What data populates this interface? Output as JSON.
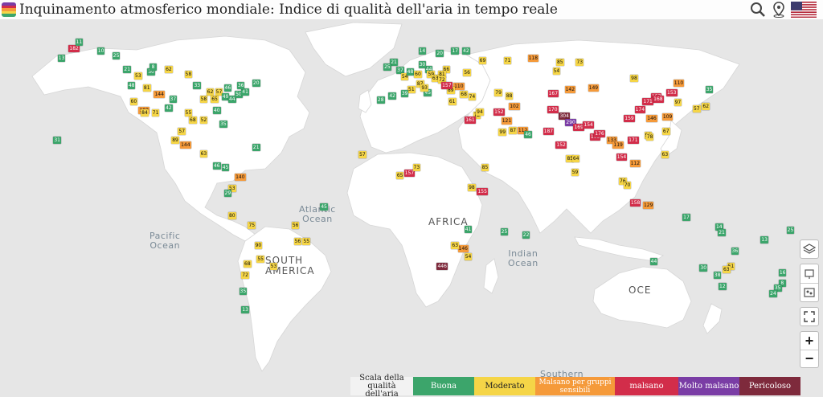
{
  "header": {
    "title": "Inquinamento atmosferico mondiale: Indice di qualità dell'aria in tempo reale",
    "icons": [
      "search-icon",
      "location-pin-icon",
      "us-flag-icon"
    ]
  },
  "colors": {
    "good": "#3ca56b",
    "moderate": "#f5d547",
    "usg": "#f59a3a",
    "unhealthy": "#d22d4a",
    "very_unhealthy": "#7a3da5",
    "hazardous": "#7e2a3c"
  },
  "map_labels": {
    "atlantic": "Atlantic\nOcean",
    "pacific": "Pacific\nOcean",
    "indian": "Indian\nOcean",
    "southern": "Southern",
    "africa": "AFRICA",
    "south_america": "SOUTH\nAMERICA",
    "oceania": "OCE"
  },
  "legend": {
    "title_line1": "Scala della",
    "title_line2": "qualità dell'aria",
    "items": [
      {
        "label": "Buona",
        "color": "#3ca56b",
        "text": "#fff"
      },
      {
        "label": "Moderato",
        "color": "#f5d547",
        "text": "#222"
      },
      {
        "label": "Malsano per gruppi sensibili",
        "color": "#f59a3a",
        "text": "#fff"
      },
      {
        "label": "malsano",
        "color": "#d22d4a",
        "text": "#fff"
      },
      {
        "label": "Molto malsano",
        "color": "#7a3da5",
        "text": "#fff"
      },
      {
        "label": "Pericoloso",
        "color": "#7e2a3c",
        "text": "#fff"
      }
    ]
  },
  "controls": {
    "zoom_in": "+",
    "zoom_out": "−"
  },
  "stations": [
    {
      "lon": -130,
      "lat": 58,
      "v": 25
    },
    {
      "lon": -150,
      "lat": 61,
      "v": 182
    },
    {
      "lon": -147,
      "lat": 64,
      "v": 11
    },
    {
      "lon": -155,
      "lat": 57,
      "v": 13
    },
    {
      "lon": -137,
      "lat": 60,
      "v": 10
    },
    {
      "lon": -125,
      "lat": 52,
      "v": 21
    },
    {
      "lon": -120,
      "lat": 49,
      "v": 53
    },
    {
      "lon": -114,
      "lat": 51,
      "v": 30
    },
    {
      "lon": -113,
      "lat": 53,
      "v": 8
    },
    {
      "lon": -106,
      "lat": 52,
      "v": 62
    },
    {
      "lon": -97,
      "lat": 50,
      "v": 58
    },
    {
      "lon": -123,
      "lat": 45,
      "v": 48
    },
    {
      "lon": -122,
      "lat": 38,
      "v": 60
    },
    {
      "lon": -118,
      "lat": 34,
      "v": 103
    },
    {
      "lon": -117,
      "lat": 33,
      "v": 84
    },
    {
      "lon": -112,
      "lat": 33,
      "v": 71
    },
    {
      "lon": -106,
      "lat": 35,
      "v": 42
    },
    {
      "lon": -104,
      "lat": 39,
      "v": 37
    },
    {
      "lon": -111,
      "lat": 41,
      "v": 144
    },
    {
      "lon": -116,
      "lat": 44,
      "v": 81
    },
    {
      "lon": -97,
      "lat": 33,
      "v": 55
    },
    {
      "lon": -95,
      "lat": 30,
      "v": 68
    },
    {
      "lon": -90,
      "lat": 30,
      "v": 52
    },
    {
      "lon": -84,
      "lat": 34,
      "v": 40
    },
    {
      "lon": -81,
      "lat": 28,
      "v": 35
    },
    {
      "lon": -87,
      "lat": 42,
      "v": 62
    },
    {
      "lon": -83,
      "lat": 42,
      "v": 57
    },
    {
      "lon": -80,
      "lat": 40,
      "v": 49
    },
    {
      "lon": -77,
      "lat": 39,
      "v": 44
    },
    {
      "lon": -74,
      "lat": 41,
      "v": 50
    },
    {
      "lon": -71,
      "lat": 42,
      "v": 41
    },
    {
      "lon": -73,
      "lat": 45,
      "v": 36
    },
    {
      "lon": -79,
      "lat": 44,
      "v": 46
    },
    {
      "lon": -66,
      "lat": 46,
      "v": 20
    },
    {
      "lon": -93,
      "lat": 45,
      "v": 33
    },
    {
      "lon": -90,
      "lat": 39,
      "v": 58
    },
    {
      "lon": -85,
      "lat": 39,
      "v": 65
    },
    {
      "lon": -99,
      "lat": 19,
      "v": 144
    },
    {
      "lon": -103,
      "lat": 21,
      "v": 89
    },
    {
      "lon": -100,
      "lat": 25,
      "v": 57
    },
    {
      "lon": -90,
      "lat": 15,
      "v": 63
    },
    {
      "lon": -84,
      "lat": 10,
      "v": 46
    },
    {
      "lon": -80,
      "lat": 9,
      "v": 45
    },
    {
      "lon": -66,
      "lat": 18,
      "v": 21
    },
    {
      "lon": -157,
      "lat": 21,
      "v": 31
    },
    {
      "lon": -74,
      "lat": 5,
      "v": 140
    },
    {
      "lon": -77,
      "lat": 0,
      "v": 53
    },
    {
      "lon": -79,
      "lat": -2,
      "v": 29
    },
    {
      "lon": -77,
      "lat": -12,
      "v": 80
    },
    {
      "lon": -68,
      "lat": -16,
      "v": 75
    },
    {
      "lon": -47,
      "lat": -23,
      "v": 56
    },
    {
      "lon": -43,
      "lat": -23,
      "v": 55
    },
    {
      "lon": -48,
      "lat": -16,
      "v": 56
    },
    {
      "lon": -35,
      "lat": -8,
      "v": 45
    },
    {
      "lon": -70,
      "lat": -33,
      "v": 68
    },
    {
      "lon": -71,
      "lat": -38,
      "v": 72
    },
    {
      "lon": -65,
      "lat": -25,
      "v": 90
    },
    {
      "lon": -58,
      "lat": -34,
      "v": 53
    },
    {
      "lon": -64,
      "lat": -31,
      "v": 55
    },
    {
      "lon": -72,
      "lat": -45,
      "v": 35
    },
    {
      "lon": -71,
      "lat": -53,
      "v": 13
    },
    {
      "lon": -0.1,
      "lat": 51.5,
      "v": 37
    },
    {
      "lon": -3,
      "lat": 55,
      "v": 21
    },
    {
      "lon": -6,
      "lat": 53,
      "v": 25
    },
    {
      "lon": 2,
      "lat": 48.8,
      "v": 54
    },
    {
      "lon": 4.5,
      "lat": 51,
      "v": 48
    },
    {
      "lon": 8,
      "lat": 50,
      "v": 60
    },
    {
      "lon": 13,
      "lat": 52,
      "v": 44
    },
    {
      "lon": 10,
      "lat": 54,
      "v": 30
    },
    {
      "lon": 18,
      "lat": 59,
      "v": 20
    },
    {
      "lon": 10,
      "lat": 60,
      "v": 14
    },
    {
      "lon": 25,
      "lat": 60,
      "v": 17
    },
    {
      "lon": 21,
      "lat": 52,
      "v": 66
    },
    {
      "lon": 19,
      "lat": 50,
      "v": 81
    },
    {
      "lon": 14,
      "lat": 50,
      "v": 59
    },
    {
      "lon": 16,
      "lat": 48,
      "v": 63
    },
    {
      "lon": 19,
      "lat": 47.5,
      "v": 72
    },
    {
      "lon": 26,
      "lat": 44.4,
      "v": 110
    },
    {
      "lon": 23,
      "lat": 42.7,
      "v": 89
    },
    {
      "lon": 20.5,
      "lat": 44.8,
      "v": 157
    },
    {
      "lon": 12.5,
      "lat": 41.9,
      "v": 45
    },
    {
      "lon": 9,
      "lat": 45.5,
      "v": 87
    },
    {
      "lon": 11,
      "lat": 44,
      "v": 93
    },
    {
      "lon": 5,
      "lat": 43.3,
      "v": 51
    },
    {
      "lon": -3.7,
      "lat": 40.4,
      "v": 42
    },
    {
      "lon": -9,
      "lat": 38.7,
      "v": 28
    },
    {
      "lon": 2,
      "lat": 41.4,
      "v": 39
    },
    {
      "lon": 23.7,
      "lat": 38,
      "v": 61
    },
    {
      "lon": 29,
      "lat": 41,
      "v": 68
    },
    {
      "lon": 32.8,
      "lat": 39.9,
      "v": 74
    },
    {
      "lon": 30.5,
      "lat": 50.4,
      "v": 56
    },
    {
      "lon": 37.6,
      "lat": 55.7,
      "v": 69
    },
    {
      "lon": 30,
      "lat": 60,
      "v": 42
    },
    {
      "lon": 49,
      "lat": 55.8,
      "v": 71
    },
    {
      "lon": 60,
      "lat": 56.8,
      "v": 118
    },
    {
      "lon": 82,
      "lat": 55,
      "v": 73
    },
    {
      "lon": 73,
      "lat": 55,
      "v": 85
    },
    {
      "lon": 44.8,
      "lat": 41.7,
      "v": 79
    },
    {
      "lon": 49.8,
      "lat": 40.4,
      "v": 88
    },
    {
      "lon": 35,
      "lat": 32,
      "v": 72
    },
    {
      "lon": 36.3,
      "lat": 33.5,
      "v": 94
    },
    {
      "lon": 31.2,
      "lat": 30,
      "v": 161
    },
    {
      "lon": 44.4,
      "lat": 33.3,
      "v": 152
    },
    {
      "lon": 51.4,
      "lat": 35.7,
      "v": 102
    },
    {
      "lon": 46.7,
      "lat": 24.7,
      "v": 99
    },
    {
      "lon": 55.3,
      "lat": 25.2,
      "v": 112
    },
    {
      "lon": 51.5,
      "lat": 25.3,
      "v": 87
    },
    {
      "lon": 58.4,
      "lat": 23.6,
      "v": 46
    },
    {
      "lon": 47.9,
      "lat": 29.4,
      "v": 121
    },
    {
      "lon": 69,
      "lat": 34.5,
      "v": 170
    },
    {
      "lon": 67,
      "lat": 24.9,
      "v": 187
    },
    {
      "lon": 74.3,
      "lat": 31.5,
      "v": 304
    },
    {
      "lon": 77.2,
      "lat": 28.6,
      "v": 290
    },
    {
      "lon": 80.9,
      "lat": 26.8,
      "v": 169
    },
    {
      "lon": 72.8,
      "lat": 19,
      "v": 152
    },
    {
      "lon": 77.6,
      "lat": 13,
      "v": 85
    },
    {
      "lon": 80.3,
      "lat": 13.1,
      "v": 64
    },
    {
      "lon": 88.4,
      "lat": 22.6,
      "v": 168
    },
    {
      "lon": 90.4,
      "lat": 23.8,
      "v": 176
    },
    {
      "lon": 85.3,
      "lat": 27.7,
      "v": 154
    },
    {
      "lon": 79.9,
      "lat": 6.9,
      "v": 59
    },
    {
      "lon": 96,
      "lat": 21,
      "v": 133
    },
    {
      "lon": 100.5,
      "lat": 13.7,
      "v": 154
    },
    {
      "lon": 98.9,
      "lat": 18.8,
      "v": 119
    },
    {
      "lon": 105.8,
      "lat": 21,
      "v": 171
    },
    {
      "lon": 106.7,
      "lat": 10.8,
      "v": 112
    },
    {
      "lon": 101.7,
      "lat": 3.1,
      "v": 76
    },
    {
      "lon": 103.8,
      "lat": 1.35,
      "v": 70
    },
    {
      "lon": 106.8,
      "lat": -6.2,
      "v": 158
    },
    {
      "lon": 112.7,
      "lat": -7.3,
      "v": 129
    },
    {
      "lon": 121,
      "lat": 14.6,
      "v": 63
    },
    {
      "lon": 116.4,
      "lat": 39.9,
      "v": 157
    },
    {
      "lon": 117.2,
      "lat": 39.1,
      "v": 168
    },
    {
      "lon": 121.5,
      "lat": 31.2,
      "v": 109
    },
    {
      "lon": 113.3,
      "lat": 23.1,
      "v": 99
    },
    {
      "lon": 114.1,
      "lat": 22.4,
      "v": 78
    },
    {
      "lon": 104,
      "lat": 30.7,
      "v": 159
    },
    {
      "lon": 108.9,
      "lat": 34.3,
      "v": 174
    },
    {
      "lon": 114.3,
      "lat": 30.6,
      "v": 146
    },
    {
      "lon": 112.5,
      "lat": 37.9,
      "v": 171
    },
    {
      "lon": 123.4,
      "lat": 41.8,
      "v": 153
    },
    {
      "lon": 126.6,
      "lat": 45.8,
      "v": 110
    },
    {
      "lon": 126.9,
      "lat": 37.5,
      "v": 97
    },
    {
      "lon": 135.5,
      "lat": 34.7,
      "v": 57
    },
    {
      "lon": 139.7,
      "lat": 35.7,
      "v": 62
    },
    {
      "lon": 141.3,
      "lat": 43,
      "v": 35
    },
    {
      "lon": 121.5,
      "lat": 25,
      "v": 67
    },
    {
      "lon": 106.9,
      "lat": 47.9,
      "v": 98
    },
    {
      "lon": 87.6,
      "lat": 43.8,
      "v": 149
    },
    {
      "lon": 76.9,
      "lat": 43.2,
      "v": 142
    },
    {
      "lon": 69.2,
      "lat": 41.3,
      "v": 167
    },
    {
      "lon": 71.4,
      "lat": 51.2,
      "v": 54
    },
    {
      "lon": 3.4,
      "lat": 6.5,
      "v": 157
    },
    {
      "lon": -17.4,
      "lat": 14.7,
      "v": 57
    },
    {
      "lon": -0.2,
      "lat": 5.6,
      "v": 65
    },
    {
      "lon": 7.4,
      "lat": 9,
      "v": 73
    },
    {
      "lon": 36.8,
      "lat": -1.3,
      "v": 155
    },
    {
      "lon": 38.7,
      "lat": 9,
      "v": 85
    },
    {
      "lon": 32.6,
      "lat": 0.3,
      "v": 98
    },
    {
      "lon": 28,
      "lat": -26.2,
      "v": 146
    },
    {
      "lon": 18.4,
      "lat": -33.9,
      "v": 446
    },
    {
      "lon": 31,
      "lat": -29.9,
      "v": 54
    },
    {
      "lon": 25,
      "lat": -25,
      "v": 63
    },
    {
      "lon": 47.5,
      "lat": -18.9,
      "v": 25
    },
    {
      "lon": 57.5,
      "lat": -20.2,
      "v": 22
    },
    {
      "lon": 31,
      "lat": -17.8,
      "v": 41
    },
    {
      "lon": 151.2,
      "lat": -33.9,
      "v": 51
    },
    {
      "lon": 153,
      "lat": -27.5,
      "v": 36
    },
    {
      "lon": 145,
      "lat": -37.8,
      "v": 38
    },
    {
      "lon": 138.6,
      "lat": -34.9,
      "v": 30
    },
    {
      "lon": 115.9,
      "lat": -31.9,
      "v": 44
    },
    {
      "lon": 149.1,
      "lat": -35.3,
      "v": 63
    },
    {
      "lon": 147.3,
      "lat": -42.9,
      "v": 12
    },
    {
      "lon": 130.8,
      "lat": -12.5,
      "v": 17
    },
    {
      "lon": 145.8,
      "lat": -16.9,
      "v": 14
    },
    {
      "lon": 147,
      "lat": -19.3,
      "v": 21
    },
    {
      "lon": 174.8,
      "lat": -36.8,
      "v": 16
    },
    {
      "lon": 174.8,
      "lat": -41.3,
      "v": 8
    },
    {
      "lon": 172.6,
      "lat": -43.5,
      "v": 35
    },
    {
      "lon": 170.5,
      "lat": -45.9,
      "v": 24
    },
    {
      "lon": 166.5,
      "lat": -22.3,
      "v": 13
    },
    {
      "lon": 178.4,
      "lat": -18.1,
      "v": 25
    }
  ]
}
